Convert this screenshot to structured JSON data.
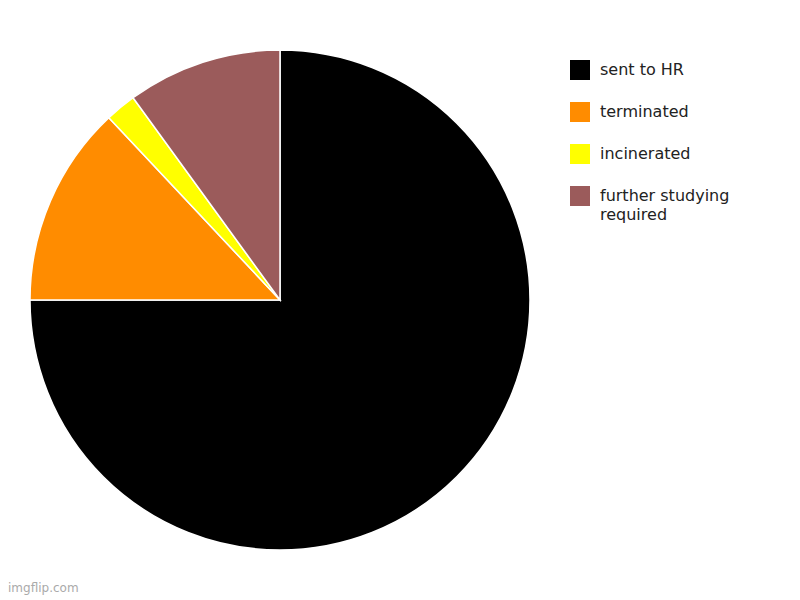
{
  "chart_data": {
    "type": "pie",
    "categories": [
      "sent to HR",
      "terminated",
      "incinerated",
      "further studying\nrequired"
    ],
    "values": [
      75,
      13,
      2,
      10
    ],
    "colors": [
      "#000000",
      "#ff8c00",
      "#ffff00",
      "#9b5b5b"
    ],
    "legend": "top-right",
    "annotations": [
      "imgflip.com"
    ]
  }
}
